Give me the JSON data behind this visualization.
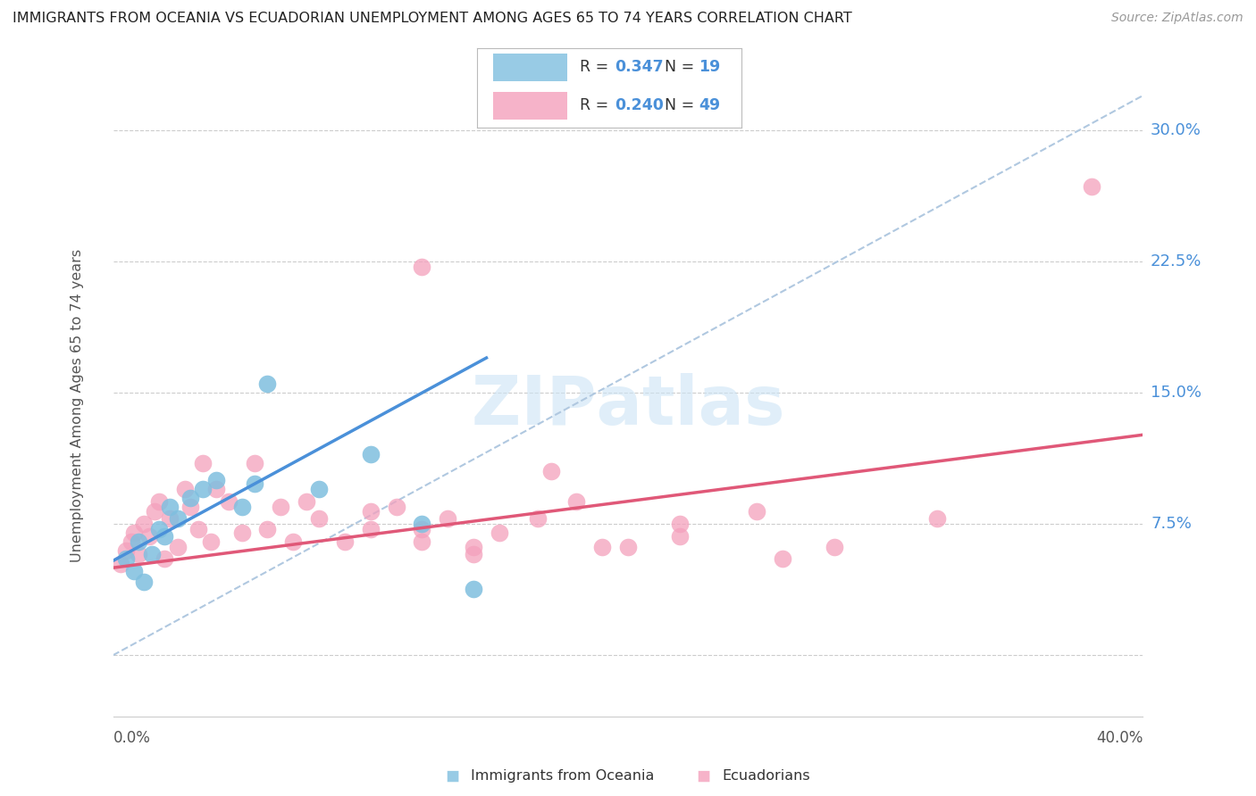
{
  "title": "IMMIGRANTS FROM OCEANIA VS ECUADORIAN UNEMPLOYMENT AMONG AGES 65 TO 74 YEARS CORRELATION CHART",
  "source": "Source: ZipAtlas.com",
  "ylabel": "Unemployment Among Ages 65 to 74 years",
  "xlim": [
    0.0,
    0.4
  ],
  "ylim": [
    -0.035,
    0.32
  ],
  "yticks": [
    0.0,
    0.075,
    0.15,
    0.225,
    0.3
  ],
  "ytick_labels": [
    "",
    "7.5%",
    "15.0%",
    "22.5%",
    "30.0%"
  ],
  "blue_color": "#7fbfdf",
  "pink_color": "#f4a0bc",
  "blue_line_color": "#4a90d9",
  "pink_line_color": "#e05878",
  "diag_line_color": "#b0c8e0",
  "R_blue": 0.347,
  "N_blue": 19,
  "R_pink": 0.24,
  "N_pink": 49,
  "legend_label_blue": "Immigrants from Oceania",
  "legend_label_pink": "Ecuadorians",
  "blue_scatter_x": [
    0.005,
    0.008,
    0.01,
    0.012,
    0.015,
    0.018,
    0.02,
    0.022,
    0.025,
    0.03,
    0.035,
    0.04,
    0.05,
    0.055,
    0.06,
    0.08,
    0.1,
    0.12,
    0.14
  ],
  "blue_scatter_y": [
    0.055,
    0.048,
    0.065,
    0.042,
    0.058,
    0.072,
    0.068,
    0.085,
    0.078,
    0.09,
    0.095,
    0.1,
    0.085,
    0.098,
    0.155,
    0.095,
    0.115,
    0.075,
    0.038
  ],
  "pink_scatter_x": [
    0.003,
    0.005,
    0.007,
    0.008,
    0.01,
    0.012,
    0.014,
    0.016,
    0.018,
    0.02,
    0.022,
    0.025,
    0.028,
    0.03,
    0.033,
    0.035,
    0.038,
    0.04,
    0.045,
    0.05,
    0.055,
    0.06,
    0.065,
    0.07,
    0.075,
    0.08,
    0.09,
    0.1,
    0.11,
    0.12,
    0.13,
    0.14,
    0.15,
    0.165,
    0.18,
    0.2,
    0.22,
    0.25,
    0.28,
    0.32,
    0.38,
    0.1,
    0.12,
    0.14,
    0.17,
    0.19,
    0.22,
    0.12,
    0.26
  ],
  "pink_scatter_y": [
    0.052,
    0.06,
    0.065,
    0.07,
    0.058,
    0.075,
    0.068,
    0.082,
    0.088,
    0.055,
    0.078,
    0.062,
    0.095,
    0.085,
    0.072,
    0.11,
    0.065,
    0.095,
    0.088,
    0.07,
    0.11,
    0.072,
    0.085,
    0.065,
    0.088,
    0.078,
    0.065,
    0.072,
    0.085,
    0.065,
    0.078,
    0.062,
    0.07,
    0.078,
    0.088,
    0.062,
    0.075,
    0.082,
    0.062,
    0.078,
    0.268,
    0.082,
    0.072,
    0.058,
    0.105,
    0.062,
    0.068,
    0.222,
    0.055
  ]
}
